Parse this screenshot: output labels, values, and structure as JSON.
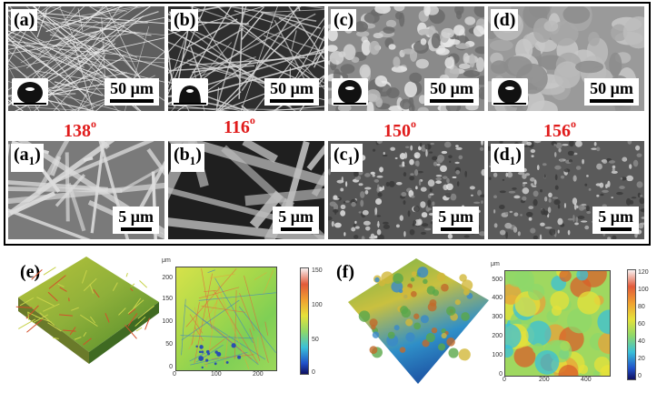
{
  "panels": [
    {
      "label": "(a)",
      "scale": "50 μm"
    },
    {
      "label": "(b)",
      "scale": "50 μm"
    },
    {
      "label": "(c)",
      "scale": "50 μm"
    },
    {
      "label": "(d)",
      "scale": "50 μm"
    }
  ],
  "panels_zoom": [
    {
      "label": "(a",
      "sub": "1",
      "close": ")",
      "scale": "5 μm"
    },
    {
      "label": "(b",
      "sub": "1",
      "close": ")",
      "scale": "5 μm"
    },
    {
      "label": "(c",
      "sub": "1",
      "close": ")",
      "scale": "5 μm"
    },
    {
      "label": "(d",
      "sub": "1",
      "close": ")",
      "scale": "5 μm"
    }
  ],
  "angles": [
    {
      "value": "138",
      "deg": "o"
    },
    {
      "value": "116",
      "deg": "o"
    },
    {
      "value": "150",
      "deg": "o"
    },
    {
      "value": "156",
      "deg": "o"
    }
  ],
  "bottom": {
    "e": {
      "label": "(e)",
      "unit": "μm",
      "y_ticks": [
        "200",
        "150",
        "100",
        "50",
        "0"
      ],
      "x_ticks": [
        "0",
        "100",
        "200"
      ],
      "cbar": [
        "150",
        "100",
        "50",
        "0"
      ]
    },
    "f": {
      "label": "(f)",
      "unit": "μm",
      "y_ticks": [
        "500",
        "400",
        "300",
        "200",
        "100",
        "0"
      ],
      "x_ticks": [
        "0",
        "200",
        "400"
      ],
      "cbar": [
        "120",
        "100",
        "80",
        "60",
        "40",
        "20",
        "0"
      ]
    }
  },
  "colors": {
    "angle": "#e01b1b"
  }
}
